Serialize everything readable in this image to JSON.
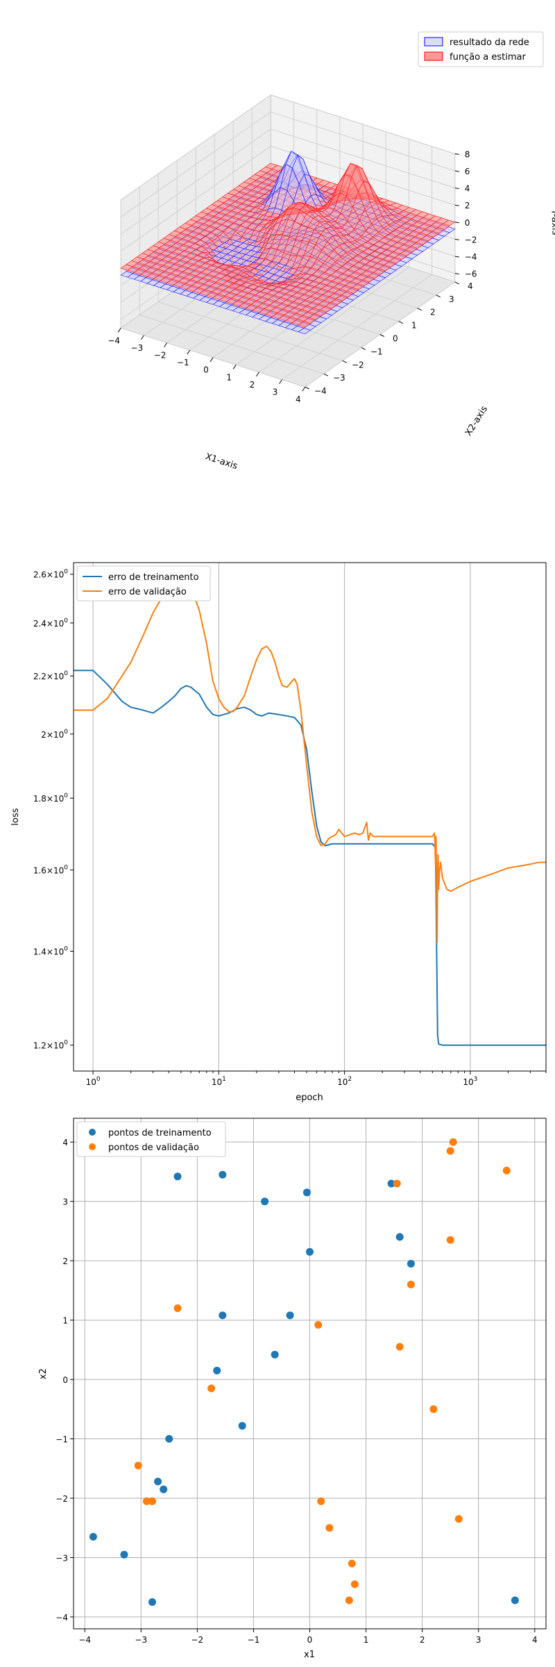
{
  "charts": {
    "surface": {
      "type": "surface3d",
      "xlabel": "X1-axis",
      "ylabel": "X2-axis",
      "zlabel": "Y-axis",
      "xticks": [
        "−4",
        "−3",
        "−2",
        "−1",
        "0",
        "1",
        "2",
        "3",
        "4"
      ],
      "yticks": [
        "−4",
        "−3",
        "−2",
        "−1",
        "0",
        "1",
        "2",
        "3",
        "4"
      ],
      "zticks": [
        "−6",
        "−4",
        "−2",
        "0",
        "2",
        "4",
        "6",
        "8"
      ],
      "xlim": [
        -4,
        4
      ],
      "ylim": [
        -4,
        4
      ],
      "zlim": [
        -6,
        8
      ],
      "legend": [
        {
          "label": "resultado da rede",
          "color": "#0000ff"
        },
        {
          "label": "função a estimar",
          "color": "#ff0000"
        }
      ],
      "legend_position": "top-right"
    },
    "loss": {
      "type": "line",
      "xscale": "log",
      "xlabel": "epoch",
      "ylabel": "loss",
      "xlim": [
        0.7,
        4000
      ],
      "ylim": [
        1.15,
        2.65
      ],
      "xticks": [
        {
          "value": 1,
          "base": "10",
          "exp": "0"
        },
        {
          "value": 10,
          "base": "10",
          "exp": "1"
        },
        {
          "value": 100,
          "base": "10",
          "exp": "2"
        },
        {
          "value": 1000,
          "base": "10",
          "exp": "3"
        }
      ],
      "yticks": [
        {
          "value": 1.2,
          "mant": "1.2",
          "base": "10",
          "exp": "0"
        },
        {
          "value": 1.4,
          "mant": "1.4",
          "base": "10",
          "exp": "0"
        },
        {
          "value": 1.6,
          "mant": "1.6",
          "base": "10",
          "exp": "0"
        },
        {
          "value": 1.8,
          "mant": "1.8",
          "base": "10",
          "exp": "0"
        },
        {
          "value": 2.0,
          "mant": "2",
          "base": "10",
          "exp": "0"
        },
        {
          "value": 2.2,
          "mant": "2.2",
          "base": "10",
          "exp": "0"
        },
        {
          "value": 2.4,
          "mant": "2.4",
          "base": "10",
          "exp": "0"
        },
        {
          "value": 2.6,
          "mant": "2.6",
          "base": "10",
          "exp": "0"
        }
      ],
      "grid": "vertical",
      "legend_position": "top-left",
      "series": [
        {
          "name": "erro de treinamento",
          "color": "#1f77b4",
          "points": [
            [
              0.7,
              2.22
            ],
            [
              1,
              2.22
            ],
            [
              1.3,
              2.17
            ],
            [
              1.7,
              2.11
            ],
            [
              2,
              2.09
            ],
            [
              2.5,
              2.08
            ],
            [
              3,
              2.07
            ],
            [
              3.5,
              2.09
            ],
            [
              4,
              2.11
            ],
            [
              4.5,
              2.13
            ],
            [
              5,
              2.155
            ],
            [
              5.5,
              2.165
            ],
            [
              6,
              2.16
            ],
            [
              7,
              2.135
            ],
            [
              8,
              2.09
            ],
            [
              9,
              2.065
            ],
            [
              10,
              2.06
            ],
            [
              12,
              2.07
            ],
            [
              14,
              2.085
            ],
            [
              16,
              2.09
            ],
            [
              18,
              2.08
            ],
            [
              20,
              2.065
            ],
            [
              22,
              2.06
            ],
            [
              25,
              2.07
            ],
            [
              30,
              2.065
            ],
            [
              35,
              2.06
            ],
            [
              40,
              2.055
            ],
            [
              45,
              2.03
            ],
            [
              50,
              1.95
            ],
            [
              55,
              1.82
            ],
            [
              60,
              1.72
            ],
            [
              65,
              1.675
            ],
            [
              70,
              1.665
            ],
            [
              80,
              1.67
            ],
            [
              100,
              1.67
            ],
            [
              150,
              1.67
            ],
            [
              300,
              1.67
            ],
            [
              500,
              1.67
            ],
            [
              530,
              1.66
            ],
            [
              540,
              1.4
            ],
            [
              550,
              1.22
            ],
            [
              560,
              1.202
            ],
            [
              600,
              1.2
            ],
            [
              1000,
              1.2
            ],
            [
              2000,
              1.2
            ],
            [
              4000,
              1.2
            ]
          ]
        },
        {
          "name": "erro de validação",
          "color": "#ff7f0e",
          "points": [
            [
              0.7,
              2.08
            ],
            [
              1,
              2.08
            ],
            [
              1.3,
              2.12
            ],
            [
              1.7,
              2.2
            ],
            [
              2,
              2.25
            ],
            [
              2.5,
              2.35
            ],
            [
              3,
              2.44
            ],
            [
              3.5,
              2.5
            ],
            [
              4,
              2.55
            ],
            [
              4.5,
              2.6
            ],
            [
              5,
              2.62
            ],
            [
              5.5,
              2.6
            ],
            [
              6,
              2.55
            ],
            [
              7,
              2.45
            ],
            [
              8,
              2.32
            ],
            [
              9,
              2.18
            ],
            [
              10,
              2.12
            ],
            [
              11,
              2.09
            ],
            [
              12,
              2.075
            ],
            [
              13,
              2.075
            ],
            [
              14,
              2.09
            ],
            [
              16,
              2.13
            ],
            [
              18,
              2.2
            ],
            [
              20,
              2.26
            ],
            [
              22,
              2.3
            ],
            [
              24,
              2.31
            ],
            [
              26,
              2.29
            ],
            [
              28,
              2.25
            ],
            [
              30,
              2.2
            ],
            [
              32,
              2.165
            ],
            [
              35,
              2.16
            ],
            [
              38,
              2.18
            ],
            [
              40,
              2.19
            ],
            [
              42,
              2.17
            ],
            [
              45,
              2.08
            ],
            [
              50,
              1.9
            ],
            [
              55,
              1.76
            ],
            [
              60,
              1.69
            ],
            [
              65,
              1.665
            ],
            [
              70,
              1.67
            ],
            [
              75,
              1.685
            ],
            [
              80,
              1.69
            ],
            [
              85,
              1.695
            ],
            [
              90,
              1.71
            ],
            [
              95,
              1.7
            ],
            [
              100,
              1.69
            ],
            [
              110,
              1.695
            ],
            [
              120,
              1.7
            ],
            [
              130,
              1.695
            ],
            [
              140,
              1.7
            ],
            [
              150,
              1.73
            ],
            [
              155,
              1.68
            ],
            [
              160,
              1.7
            ],
            [
              170,
              1.69
            ],
            [
              200,
              1.69
            ],
            [
              300,
              1.69
            ],
            [
              500,
              1.69
            ],
            [
              520,
              1.7
            ],
            [
              530,
              1.61
            ],
            [
              535,
              1.69
            ],
            [
              540,
              1.55
            ],
            [
              545,
              1.42
            ],
            [
              550,
              1.6
            ],
            [
              555,
              1.64
            ],
            [
              560,
              1.55
            ],
            [
              570,
              1.6
            ],
            [
              580,
              1.62
            ],
            [
              600,
              1.58
            ],
            [
              650,
              1.55
            ],
            [
              700,
              1.545
            ],
            [
              800,
              1.555
            ],
            [
              1000,
              1.57
            ],
            [
              1500,
              1.59
            ],
            [
              2000,
              1.605
            ],
            [
              3000,
              1.615
            ],
            [
              3500,
              1.62
            ],
            [
              4000,
              1.62
            ]
          ]
        }
      ]
    },
    "scatter": {
      "type": "scatter",
      "xlabel": "x1",
      "ylabel": "x2",
      "xlim": [
        -4.2,
        4.2
      ],
      "ylim": [
        -4.2,
        4.4
      ],
      "xticks": [
        "−4",
        "−3",
        "−2",
        "−1",
        "0",
        "1",
        "2",
        "3",
        "4"
      ],
      "yticks": [
        "−4",
        "−3",
        "−2",
        "−1",
        "0",
        "1",
        "2",
        "3",
        "4"
      ],
      "grid": true,
      "legend_position": "top-left",
      "series": [
        {
          "name": "pontos de treinamento",
          "color": "#1f77b4",
          "points": [
            [
              -2.35,
              3.42
            ],
            [
              -1.55,
              3.45
            ],
            [
              -0.8,
              3.0
            ],
            [
              -0.05,
              3.15
            ],
            [
              1.45,
              3.3
            ],
            [
              1.6,
              2.4
            ],
            [
              1.8,
              1.95
            ],
            [
              0.0,
              2.15
            ],
            [
              -1.55,
              1.08
            ],
            [
              -0.35,
              1.08
            ],
            [
              -0.62,
              0.42
            ],
            [
              -1.65,
              0.15
            ],
            [
              -1.2,
              -0.78
            ],
            [
              -2.5,
              -1.0
            ],
            [
              -2.7,
              -1.72
            ],
            [
              -2.6,
              -1.85
            ],
            [
              -3.85,
              -2.65
            ],
            [
              -3.3,
              -2.95
            ],
            [
              -2.8,
              -3.75
            ],
            [
              3.65,
              -3.72
            ]
          ]
        },
        {
          "name": "pontos de validação",
          "color": "#ff7f0e",
          "points": [
            [
              2.55,
              4.0
            ],
            [
              2.5,
              3.85
            ],
            [
              3.5,
              3.52
            ],
            [
              1.55,
              3.3
            ],
            [
              2.5,
              2.35
            ],
            [
              1.8,
              1.6
            ],
            [
              -2.35,
              1.2
            ],
            [
              0.15,
              0.92
            ],
            [
              1.6,
              0.55
            ],
            [
              -1.75,
              -0.15
            ],
            [
              2.2,
              -0.5
            ],
            [
              -3.05,
              -1.45
            ],
            [
              -2.9,
              -2.05
            ],
            [
              -2.8,
              -2.05
            ],
            [
              0.2,
              -2.05
            ],
            [
              0.35,
              -2.5
            ],
            [
              2.65,
              -2.35
            ],
            [
              0.75,
              -3.1
            ],
            [
              0.8,
              -3.45
            ],
            [
              0.7,
              -3.72
            ]
          ]
        }
      ]
    }
  }
}
